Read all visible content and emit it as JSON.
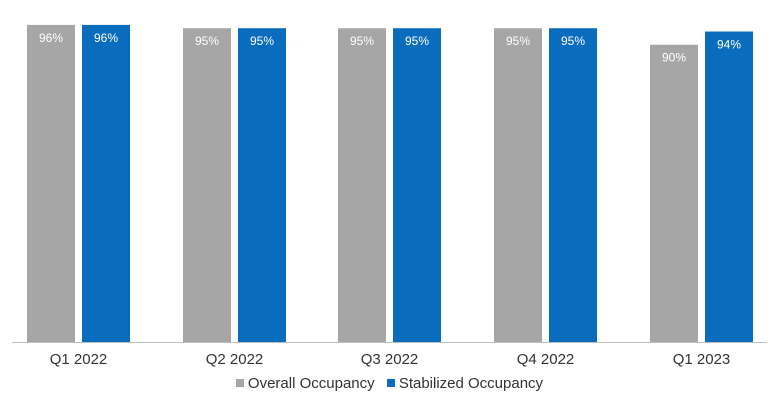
{
  "chart_data": {
    "type": "bar",
    "title": "",
    "xlabel": "",
    "ylabel": "",
    "ylim": [
      0,
      100
    ],
    "grid": false,
    "legend_position": "bottom-center",
    "categories": [
      "Q1 2022",
      "Q2 2022",
      "Q3 2022",
      "Q4 2022",
      "Q1 2023"
    ],
    "series": [
      {
        "name": "Overall Occupancy",
        "color": "#a6a6a6",
        "values": [
          96,
          95,
          95,
          95,
          90
        ],
        "labels": [
          "96%",
          "95%",
          "95%",
          "95%",
          "90%"
        ]
      },
      {
        "name": "Stabilized Occupancy",
        "color": "#0a6cbc",
        "values": [
          96,
          95,
          95,
          95,
          94
        ],
        "labels": [
          "96%",
          "95%",
          "95%",
          "95%",
          "94%"
        ]
      }
    ]
  },
  "colors": {
    "baseline": "#bfbfbf",
    "label_text": "#ffffff",
    "axis_text": "#333333"
  }
}
